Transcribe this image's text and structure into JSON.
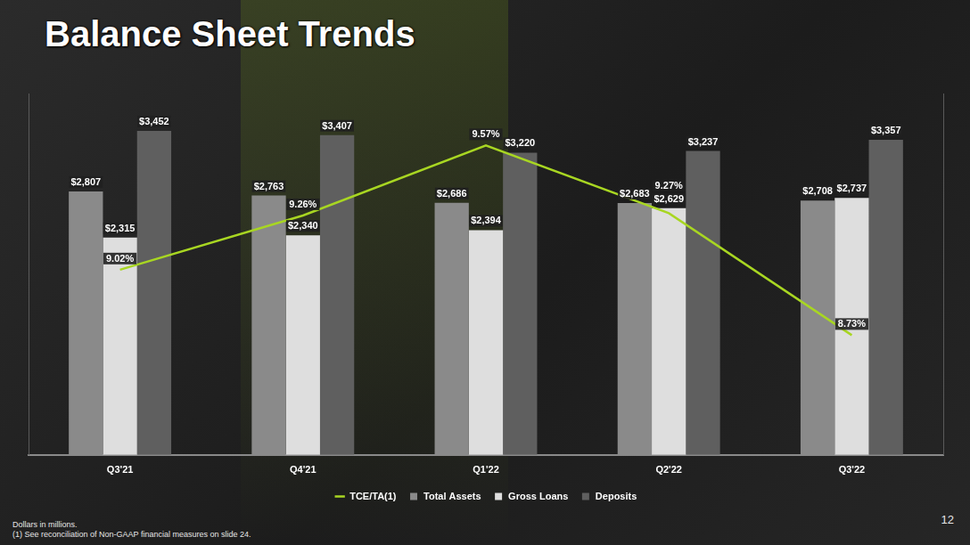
{
  "footnotes": [
    "Dollars in millions.",
    "(1) See reconciliation of Non-GAAP financial measures on slide 24."
  ],
  "page_number": "12",
  "chart_data": {
    "type": "bar",
    "title": "Balance Sheet Trends",
    "categories": [
      "Q3'21",
      "Q4'21",
      "Q1'22",
      "Q2'22",
      "Q3'22"
    ],
    "series": [
      {
        "name": "Total Assets",
        "type": "bar",
        "color": "#8a8a8a",
        "values": [
          2807,
          2763,
          2686,
          2683,
          2708
        ],
        "value_labels": [
          "$2,807",
          "$2,763",
          "$2,686",
          "$2,683",
          "$2,708"
        ]
      },
      {
        "name": "Gross Loans",
        "type": "bar",
        "color": "#dedede",
        "values": [
          2315,
          2340,
          2394,
          2629,
          2737
        ],
        "value_labels": [
          "$2,315",
          "$2,340",
          "$2,394",
          "$2,629",
          "$2,737"
        ]
      },
      {
        "name": "Deposits",
        "type": "bar",
        "color": "#5f5f5f",
        "values": [
          3452,
          3407,
          3220,
          3237,
          3357
        ],
        "value_labels": [
          "$3,452",
          "$3,407",
          "$3,220",
          "$3,237",
          "$3,357"
        ]
      },
      {
        "name": "TCE/TA(1)",
        "type": "line",
        "color": "#a8d622",
        "axis": "y2",
        "marker": "none",
        "line_style": "solid",
        "values": [
          9.02,
          9.26,
          9.57,
          9.27,
          8.73
        ],
        "value_labels": [
          "9.02%",
          "9.26%",
          "9.57%",
          "9.27%",
          "8.73%"
        ]
      }
    ],
    "ylim": [
      0,
      3850
    ],
    "y2lim": [
      8.2,
      9.8
    ],
    "grid": false,
    "legend": "bottom",
    "data_labels": true,
    "tick_labels": "x"
  }
}
